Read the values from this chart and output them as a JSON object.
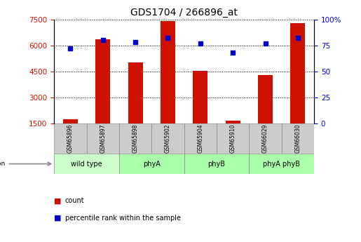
{
  "title": "GDS1704 / 266896_at",
  "samples": [
    "GSM65896",
    "GSM65897",
    "GSM65898",
    "GSM65902",
    "GSM65904",
    "GSM65910",
    "GSM66029",
    "GSM66030"
  ],
  "counts": [
    1750,
    6350,
    5000,
    7400,
    4550,
    1650,
    4300,
    7300
  ],
  "percentile_ranks": [
    72,
    80,
    78,
    82,
    77,
    68,
    77,
    82
  ],
  "groups": [
    {
      "label": "wild type",
      "start": 0,
      "end": 2,
      "color": "#ccffcc"
    },
    {
      "label": "phyA",
      "start": 2,
      "end": 4,
      "color": "#aaffaa"
    },
    {
      "label": "phyB",
      "start": 4,
      "end": 6,
      "color": "#aaffaa"
    },
    {
      "label": "phyA phyB",
      "start": 6,
      "end": 8,
      "color": "#aaffaa"
    }
  ],
  "ylim_left": [
    1500,
    7500
  ],
  "ylim_right": [
    0,
    100
  ],
  "yticks_left": [
    1500,
    3000,
    4500,
    6000,
    7500
  ],
  "yticks_right": [
    0,
    25,
    50,
    75,
    100
  ],
  "bar_color": "#cc1100",
  "dot_color": "#0000cc",
  "background_color": "#ffffff",
  "label_count": "count",
  "label_percentile": "percentile rank within the sample",
  "bar_width": 0.45,
  "sample_box_color": "#cccccc",
  "group_box_color": "#bbffbb"
}
